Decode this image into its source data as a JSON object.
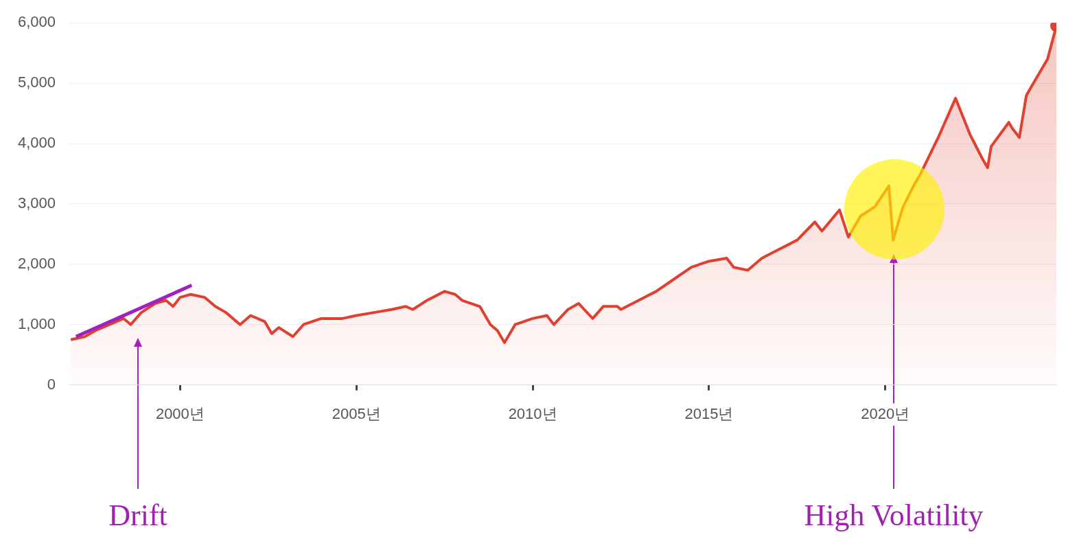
{
  "chart_data": {
    "type": "area",
    "xlim": [
      1996.86,
      2024.85
    ],
    "xticks": [
      {
        "value": 2000,
        "label": "2000년"
      },
      {
        "value": 2005,
        "label": "2005년"
      },
      {
        "value": 2010,
        "label": "2010년"
      },
      {
        "value": 2015,
        "label": "2015년"
      },
      {
        "value": 2020,
        "label": "2020년"
      }
    ],
    "ylim": [
      0,
      6000
    ],
    "yticks": [
      {
        "value": 0,
        "label": "0"
      },
      {
        "value": 1000,
        "label": "1,000"
      },
      {
        "value": 2000,
        "label": "2,000"
      },
      {
        "value": 3000,
        "label": "3,000"
      },
      {
        "value": 4000,
        "label": "4,000"
      },
      {
        "value": 5000,
        "label": "5,000"
      },
      {
        "value": 6000,
        "label": "6,000"
      }
    ],
    "grid": "y",
    "legend": false,
    "series": [
      {
        "color": "#e0402f",
        "x": [
          1996.9,
          1997.3,
          1997.6,
          1998.0,
          1998.4,
          1998.6,
          1998.9,
          1999.3,
          1999.6,
          1999.8,
          2000.0,
          2000.3,
          2000.7,
          2001.0,
          2001.3,
          2001.7,
          2002.0,
          2002.4,
          2002.6,
          2002.8,
          2003.2,
          2003.5,
          2004.0,
          2004.6,
          2005.0,
          2005.5,
          2006.0,
          2006.4,
          2006.6,
          2007.0,
          2007.5,
          2007.8,
          2008.0,
          2008.5,
          2008.8,
          2009.0,
          2009.2,
          2009.5,
          2010.0,
          2010.4,
          2010.6,
          2011.0,
          2011.3,
          2011.7,
          2012.0,
          2012.4,
          2012.5,
          2013.0,
          2013.5,
          2014.0,
          2014.5,
          2015.0,
          2015.5,
          2015.7,
          2016.1,
          2016.5,
          2017.0,
          2017.5,
          2018.0,
          2018.2,
          2018.7,
          2018.95,
          2019.3,
          2019.7,
          2020.1,
          2020.22,
          2020.5,
          2020.8,
          2021.0,
          2021.5,
          2021.99,
          2022.4,
          2022.75,
          2022.9,
          2023.0,
          2023.5,
          2023.6,
          2023.8,
          2024.0,
          2024.3,
          2024.6,
          2024.85
        ],
        "values": [
          750,
          800,
          900,
          1000,
          1100,
          1000,
          1200,
          1350,
          1400,
          1300,
          1450,
          1500,
          1450,
          1300,
          1200,
          1000,
          1150,
          1050,
          850,
          950,
          800,
          1000,
          1100,
          1100,
          1150,
          1200,
          1250,
          1300,
          1250,
          1400,
          1550,
          1500,
          1400,
          1300,
          1000,
          900,
          700,
          1000,
          1100,
          1150,
          1000,
          1250,
          1350,
          1100,
          1300,
          1300,
          1250,
          1400,
          1550,
          1750,
          1950,
          2050,
          2100,
          1950,
          1900,
          2100,
          2250,
          2400,
          2700,
          2550,
          2900,
          2450,
          2800,
          2950,
          3300,
          2400,
          2950,
          3300,
          3500,
          4100,
          4750,
          4150,
          3750,
          3600,
          3950,
          4350,
          4250,
          4100,
          4800,
          5100,
          5400,
          5950
        ]
      },
      {
        "type": "line",
        "color": "#a020c0",
        "x": [
          1997.05,
          2000.33
        ],
        "values": [
          800,
          1650
        ]
      }
    ],
    "annotations": [
      "Drift",
      "High Volatility"
    ]
  }
}
